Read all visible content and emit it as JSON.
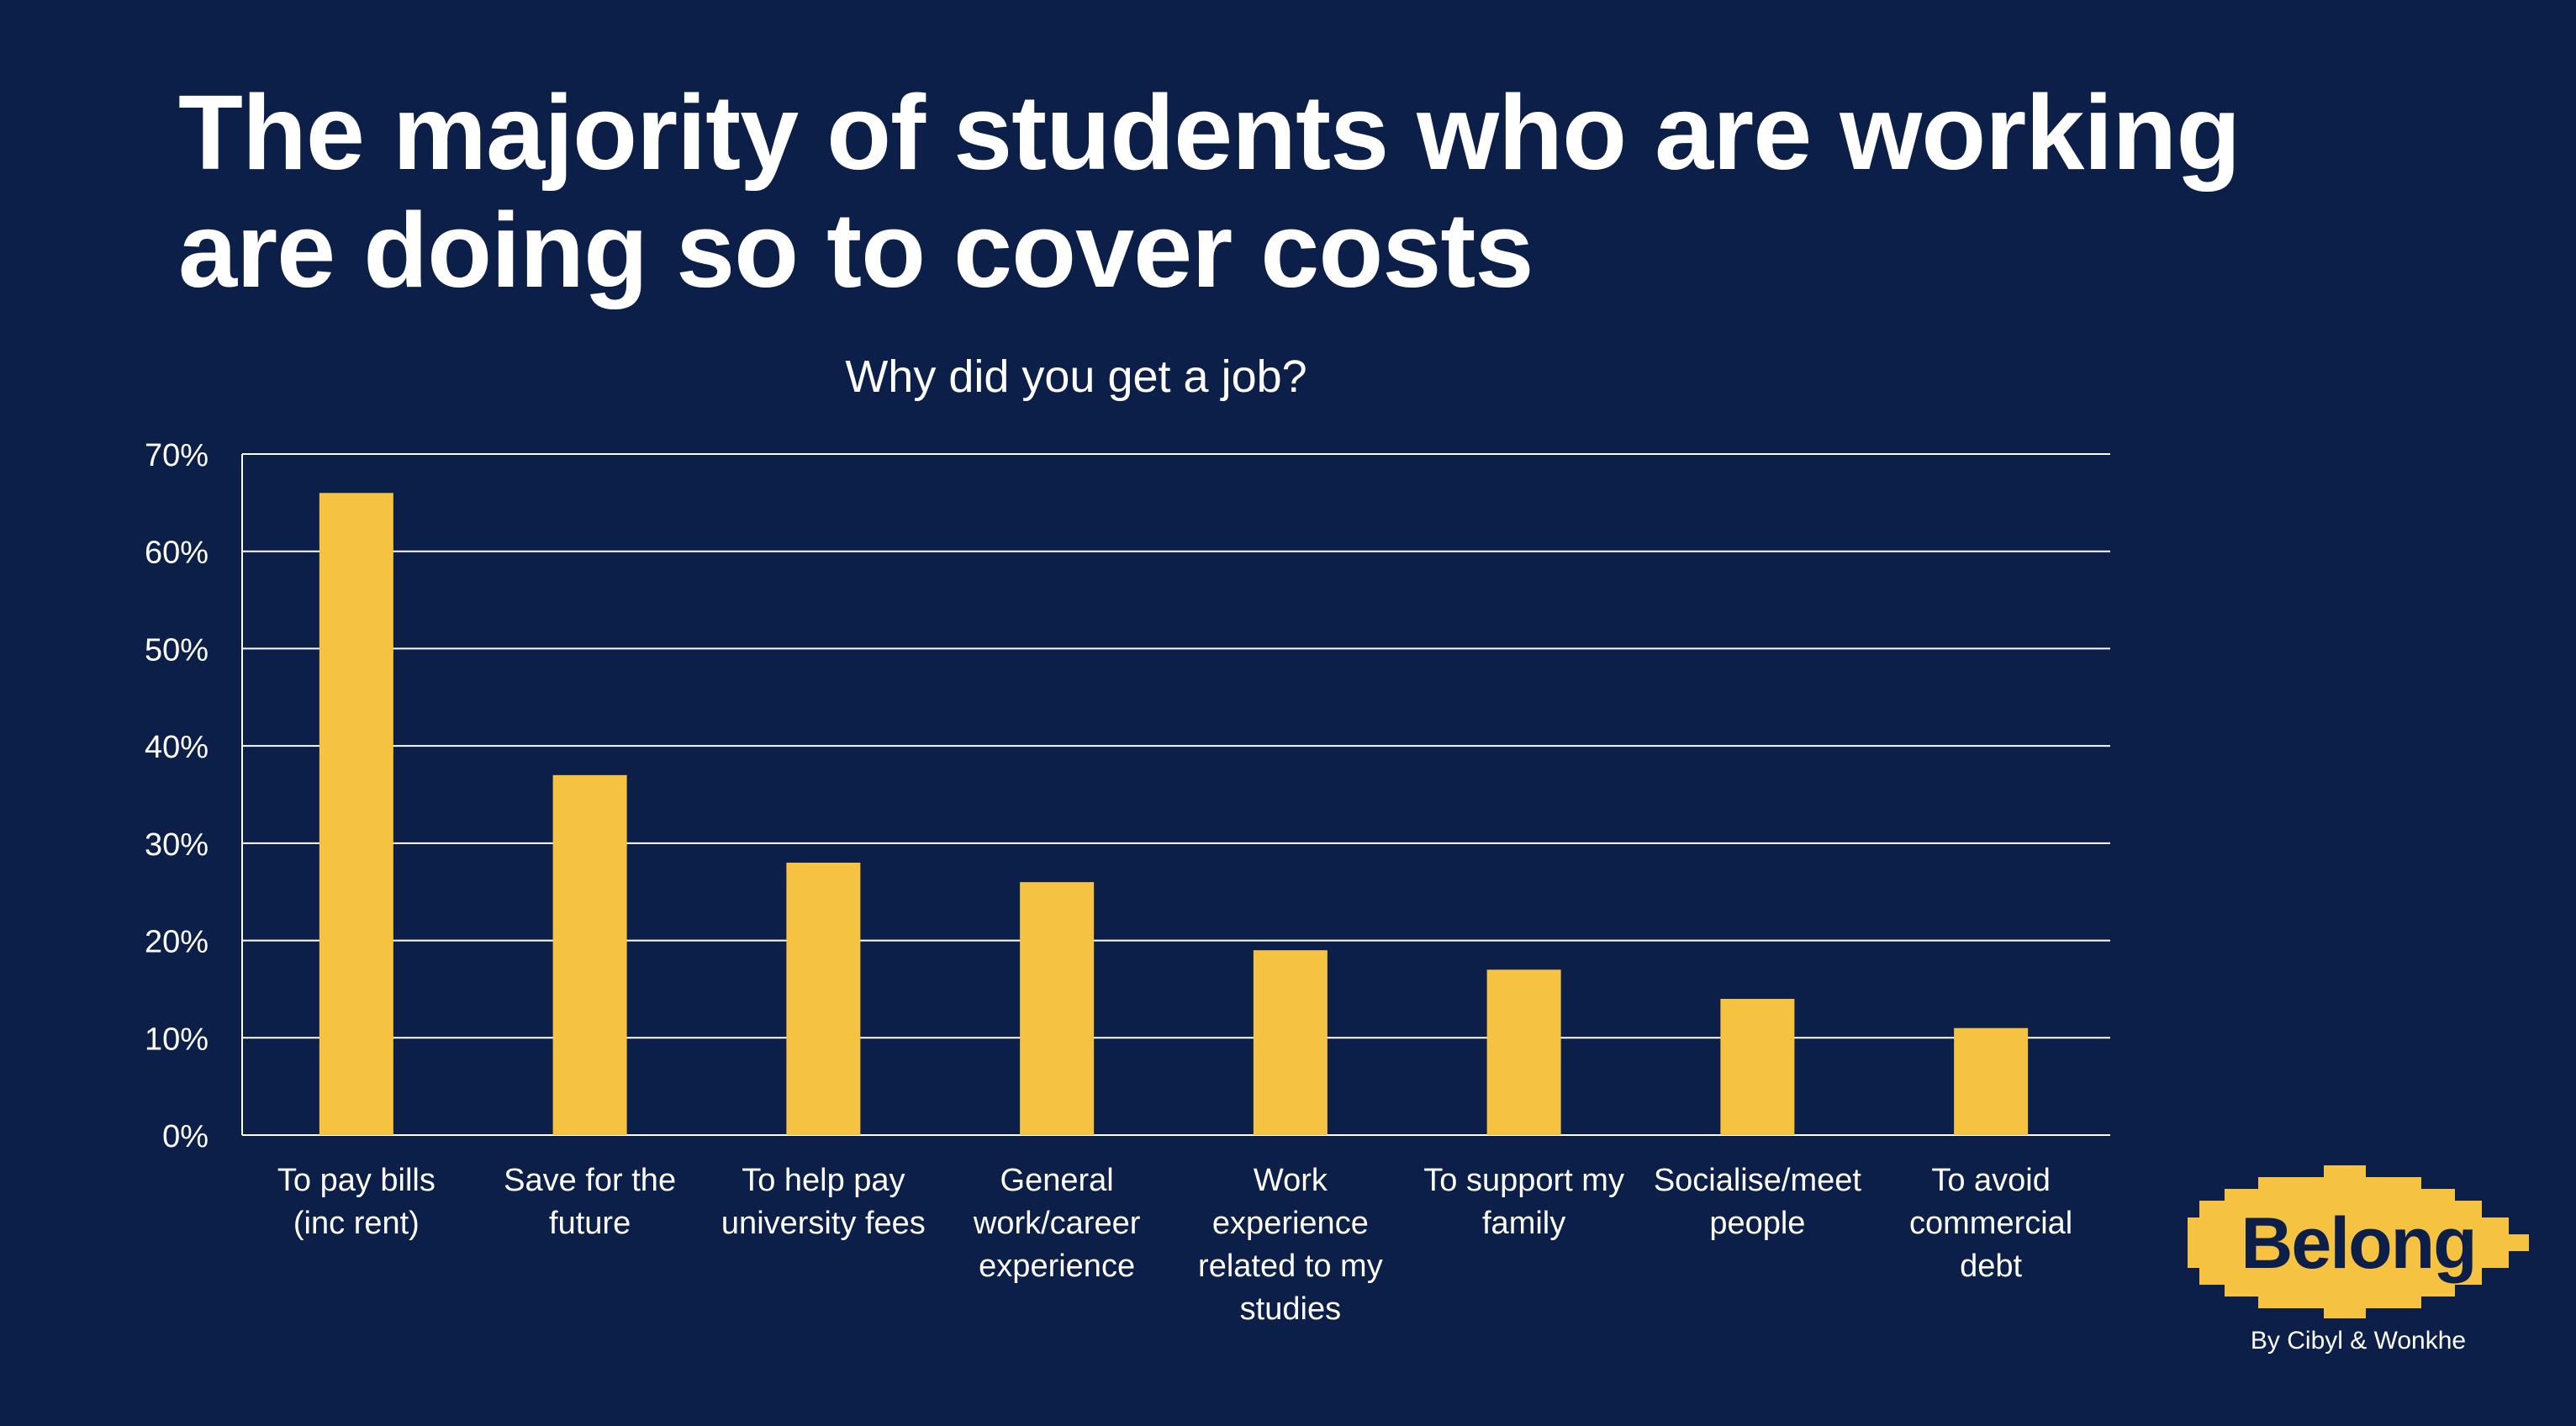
{
  "headline": {
    "line1": "The majority of students who are working",
    "line2": "are doing so to cover costs"
  },
  "colors": {
    "background": "#0c1f48",
    "bar": "#f5c242",
    "text": "#ffffff",
    "grid": "#ffffff"
  },
  "logo": {
    "word": "Belong",
    "sub": "By Cibyl & Wonkhe"
  },
  "chart_data": {
    "type": "bar",
    "title": "Why did you get a job?",
    "xlabel": "",
    "ylabel": "",
    "ylim": [
      0,
      70
    ],
    "yticks": [
      "0%",
      "10%",
      "20%",
      "30%",
      "40%",
      "50%",
      "60%",
      "70%"
    ],
    "grid": true,
    "legend": "none",
    "categories": [
      [
        "To pay bills",
        "(inc rent)"
      ],
      [
        "Save for the",
        "future"
      ],
      [
        "To help pay",
        "university fees"
      ],
      [
        "General",
        "work/career",
        "experience"
      ],
      [
        "Work",
        "experience",
        "related to my",
        "studies"
      ],
      [
        "To support my",
        "family"
      ],
      [
        "Socialise/meet",
        "people"
      ],
      [
        "To avoid",
        "commercial",
        "debt"
      ]
    ],
    "values": [
      66,
      37,
      28,
      26,
      19,
      17,
      14,
      11
    ]
  }
}
